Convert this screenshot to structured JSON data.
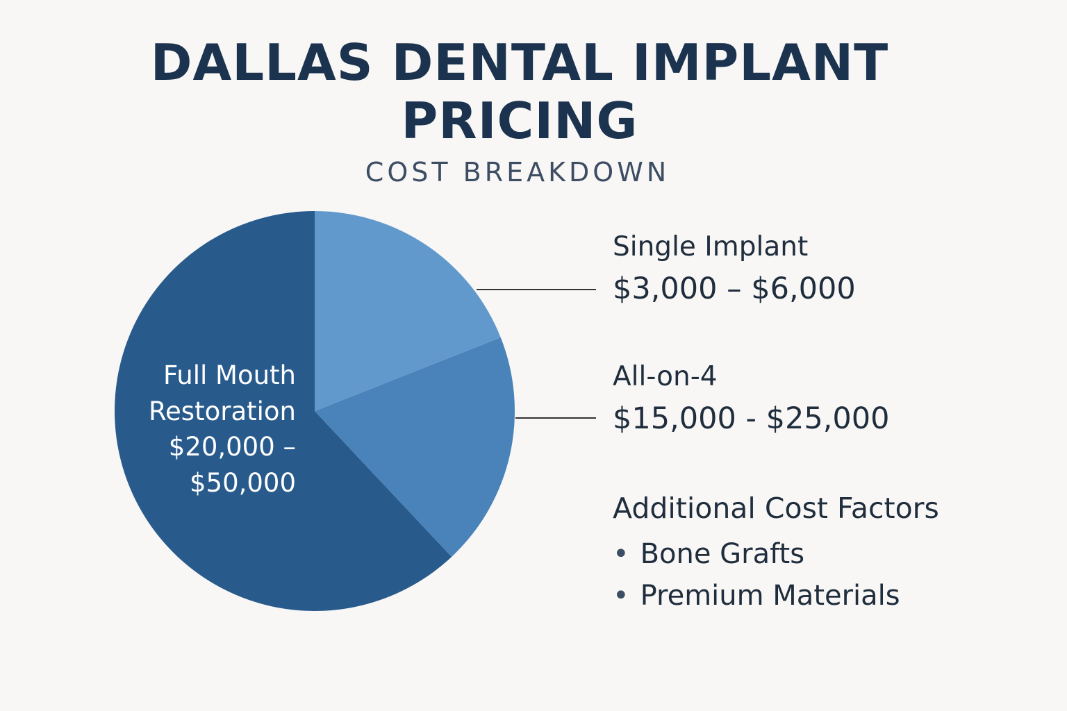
{
  "chart_data": {
    "type": "pie",
    "title": "DALLAS DENTAL IMPLANT PRICING",
    "subtitle": "COST BREAKDOWN",
    "categories": [
      "Single Implant",
      "All-on-4",
      "Full Mouth Restoration"
    ],
    "values": [
      19,
      19,
      62
    ],
    "price_ranges": [
      "$3,000 – $6,000",
      "$15,000 - $25,000",
      "$20,000 – $50,000"
    ],
    "colors": [
      "#6299cc",
      "#4a83b9",
      "#285b8c"
    ],
    "additional": {
      "title": "Additional Cost Factors",
      "items": [
        "Bone Grafts",
        "Premium Materials"
      ]
    }
  }
}
